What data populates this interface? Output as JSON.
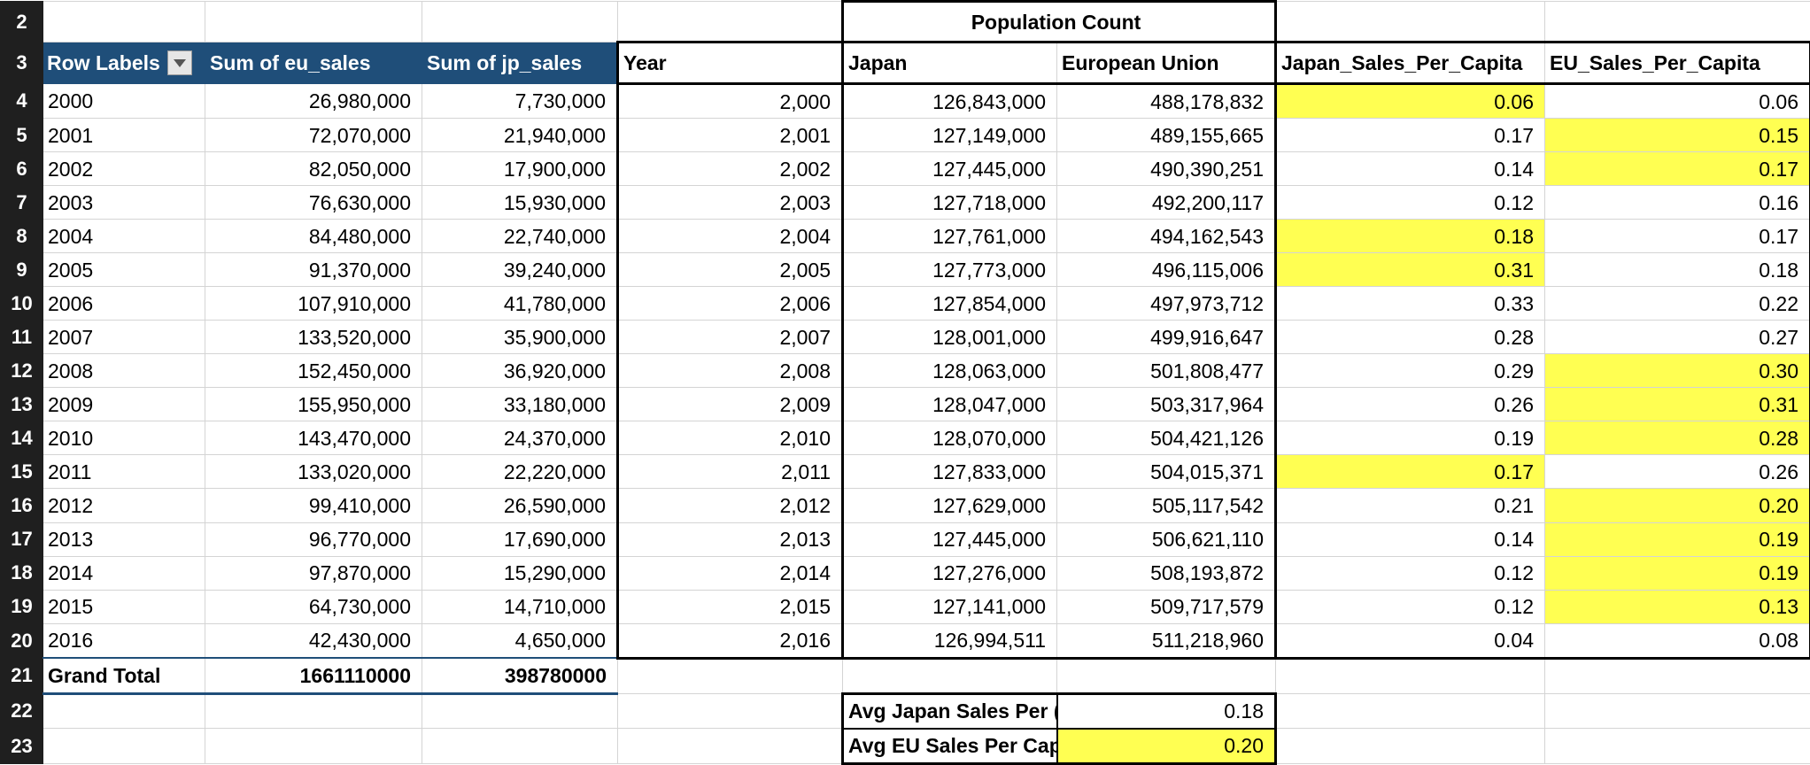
{
  "row_numbers": [
    "2",
    "3",
    "4",
    "5",
    "6",
    "7",
    "8",
    "9",
    "10",
    "11",
    "12",
    "13",
    "14",
    "15",
    "16",
    "17",
    "18",
    "19",
    "20",
    "21",
    "22",
    "23"
  ],
  "pivot": {
    "header": {
      "row_labels": "Row Labels",
      "eu": "Sum of eu_sales",
      "jp": "Sum of jp_sales"
    },
    "rows": [
      {
        "label": "2000",
        "eu": "26,980,000",
        "jp": "7,730,000"
      },
      {
        "label": "2001",
        "eu": "72,070,000",
        "jp": "21,940,000"
      },
      {
        "label": "2002",
        "eu": "82,050,000",
        "jp": "17,900,000"
      },
      {
        "label": "2003",
        "eu": "76,630,000",
        "jp": "15,930,000"
      },
      {
        "label": "2004",
        "eu": "84,480,000",
        "jp": "22,740,000"
      },
      {
        "label": "2005",
        "eu": "91,370,000",
        "jp": "39,240,000"
      },
      {
        "label": "2006",
        "eu": "107,910,000",
        "jp": "41,780,000"
      },
      {
        "label": "2007",
        "eu": "133,520,000",
        "jp": "35,900,000"
      },
      {
        "label": "2008",
        "eu": "152,450,000",
        "jp": "36,920,000"
      },
      {
        "label": "2009",
        "eu": "155,950,000",
        "jp": "33,180,000"
      },
      {
        "label": "2010",
        "eu": "143,470,000",
        "jp": "24,370,000"
      },
      {
        "label": "2011",
        "eu": "133,020,000",
        "jp": "22,220,000"
      },
      {
        "label": "2012",
        "eu": "99,410,000",
        "jp": "26,590,000"
      },
      {
        "label": "2013",
        "eu": "96,770,000",
        "jp": "17,690,000"
      },
      {
        "label": "2014",
        "eu": "97,870,000",
        "jp": "15,290,000"
      },
      {
        "label": "2015",
        "eu": "64,730,000",
        "jp": "14,710,000"
      },
      {
        "label": "2016",
        "eu": "42,430,000",
        "jp": "4,650,000"
      }
    ],
    "grand_total": {
      "label": "Grand Total",
      "eu": "1661110000",
      "jp": "398780000"
    }
  },
  "population": {
    "group_header": "Population Count",
    "headers": {
      "year": "Year",
      "japan": "Japan",
      "eu": "European Union",
      "jp_pc": "Japan_Sales_Per_Capita",
      "eu_pc": "EU_Sales_Per_Capita"
    },
    "rows": [
      {
        "year": "2,000",
        "japan": "126,843,000",
        "eu": "488,178,832",
        "jp_pc": "0.06",
        "eu_pc": "0.06"
      },
      {
        "year": "2,001",
        "japan": "127,149,000",
        "eu": "489,155,665",
        "jp_pc": "0.17",
        "eu_pc": "0.15"
      },
      {
        "year": "2,002",
        "japan": "127,445,000",
        "eu": "490,390,251",
        "jp_pc": "0.14",
        "eu_pc": "0.17"
      },
      {
        "year": "2,003",
        "japan": "127,718,000",
        "eu": "492,200,117",
        "jp_pc": "0.12",
        "eu_pc": "0.16"
      },
      {
        "year": "2,004",
        "japan": "127,761,000",
        "eu": "494,162,543",
        "jp_pc": "0.18",
        "eu_pc": "0.17"
      },
      {
        "year": "2,005",
        "japan": "127,773,000",
        "eu": "496,115,006",
        "jp_pc": "0.31",
        "eu_pc": "0.18"
      },
      {
        "year": "2,006",
        "japan": "127,854,000",
        "eu": "497,973,712",
        "jp_pc": "0.33",
        "eu_pc": "0.22"
      },
      {
        "year": "2,007",
        "japan": "128,001,000",
        "eu": "499,916,647",
        "jp_pc": "0.28",
        "eu_pc": "0.27"
      },
      {
        "year": "2,008",
        "japan": "128,063,000",
        "eu": "501,808,477",
        "jp_pc": "0.29",
        "eu_pc": "0.30"
      },
      {
        "year": "2,009",
        "japan": "128,047,000",
        "eu": "503,317,964",
        "jp_pc": "0.26",
        "eu_pc": "0.31"
      },
      {
        "year": "2,010",
        "japan": "128,070,000",
        "eu": "504,421,126",
        "jp_pc": "0.19",
        "eu_pc": "0.28"
      },
      {
        "year": "2,011",
        "japan": "127,833,000",
        "eu": "504,015,371",
        "jp_pc": "0.17",
        "eu_pc": "0.26"
      },
      {
        "year": "2,012",
        "japan": "127,629,000",
        "eu": "505,117,542",
        "jp_pc": "0.21",
        "eu_pc": "0.20"
      },
      {
        "year": "2,013",
        "japan": "127,445,000",
        "eu": "506,621,110",
        "jp_pc": "0.14",
        "eu_pc": "0.19"
      },
      {
        "year": "2,014",
        "japan": "127,276,000",
        "eu": "508,193,872",
        "jp_pc": "0.12",
        "eu_pc": "0.19"
      },
      {
        "year": "2,015",
        "japan": "127,141,000",
        "eu": "509,717,579",
        "jp_pc": "0.12",
        "eu_pc": "0.13"
      },
      {
        "year": "2,016",
        "japan": "126,994,511",
        "eu": "511,218,960",
        "jp_pc": "0.04",
        "eu_pc": "0.08"
      }
    ]
  },
  "averages": {
    "jp_label": "Avg Japan Sales Per (",
    "jp_value": "0.18",
    "eu_label": "Avg EU Sales Per Cap",
    "eu_value": "0.20"
  },
  "colors": {
    "pivot_header": "#1f4e79",
    "highlight": "#ffff52",
    "row_header": "#1f1f1f"
  }
}
